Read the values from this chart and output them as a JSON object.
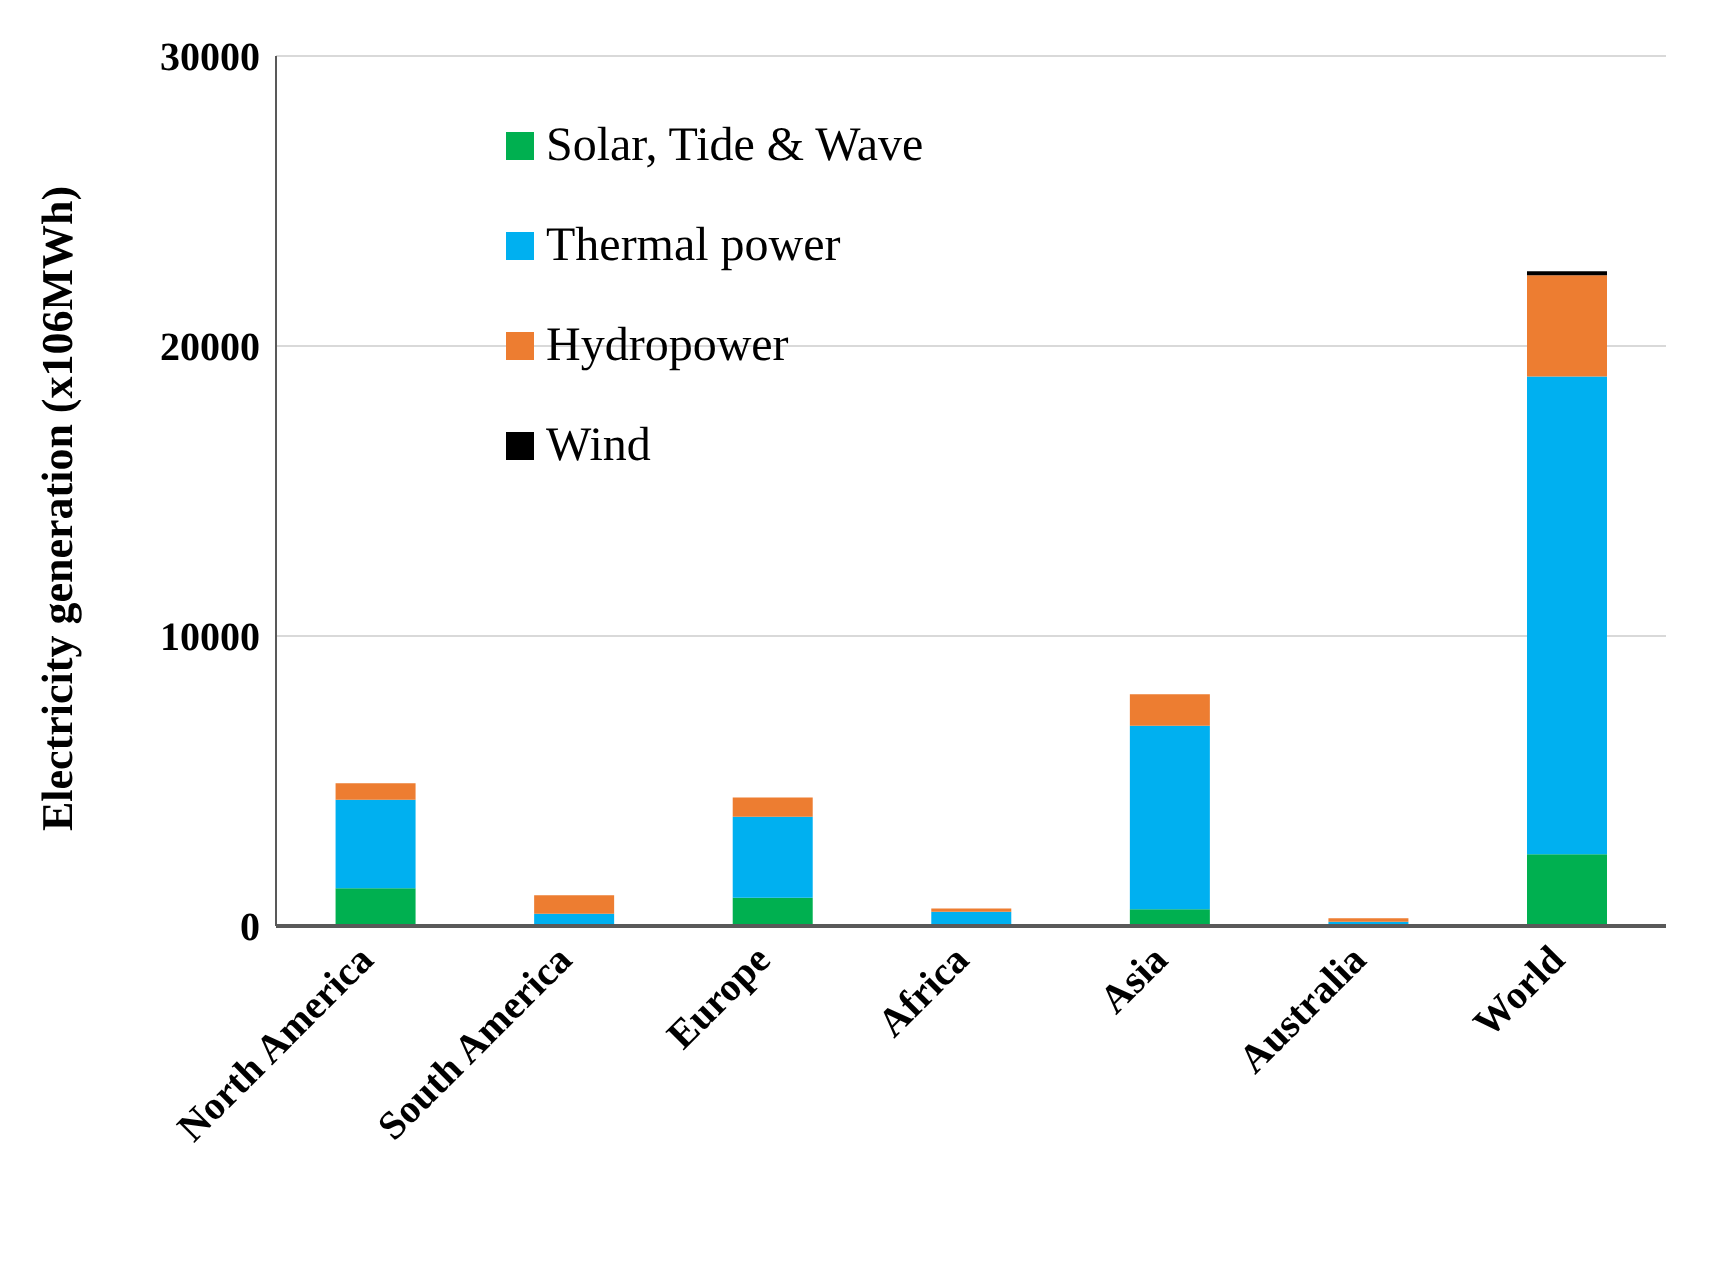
{
  "chart_data": {
    "type": "bar",
    "stacked": true,
    "ylabel": "Electricity generation (x106MWh)",
    "categories": [
      "North America",
      "South America",
      "Europe",
      "Africa",
      "Asia",
      "Australia",
      "World"
    ],
    "series": [
      {
        "name": "Solar, Tide & Wave",
        "color": "#00b050",
        "values": [
          1300,
          20,
          970,
          20,
          575,
          10,
          2470
        ]
      },
      {
        "name": "Thermal power",
        "color": "#00b0f0",
        "values": [
          3050,
          400,
          2800,
          470,
          6330,
          140,
          16480
        ]
      },
      {
        "name": "Hydropower",
        "color": "#ed7d31",
        "values": [
          570,
          640,
          665,
          110,
          1090,
          115,
          3490
        ]
      },
      {
        "name": "Wind",
        "color": "#000000",
        "values": [
          null,
          null,
          null,
          null,
          null,
          null,
          135
        ]
      }
    ],
    "ylim": [
      0,
      30000
    ],
    "yticks": [
      0,
      10000,
      20000,
      30000
    ],
    "grid": "y",
    "legend": "top left"
  }
}
